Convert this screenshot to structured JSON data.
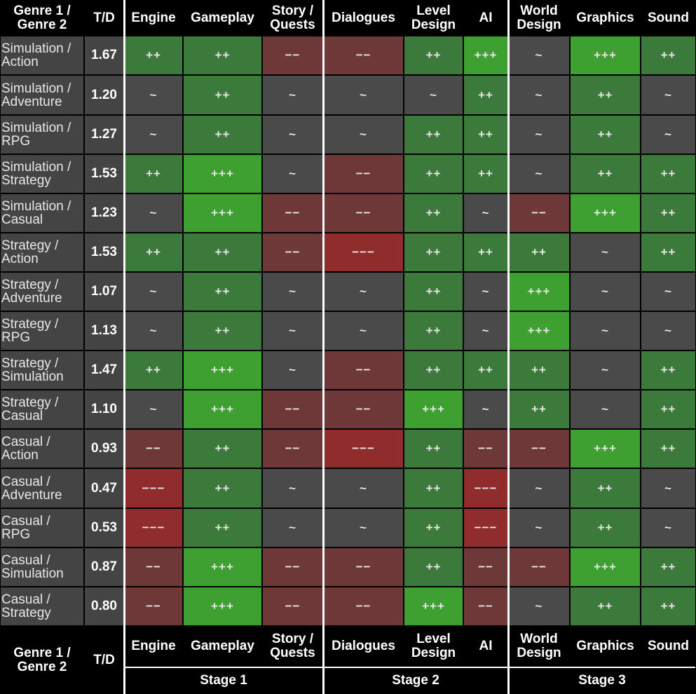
{
  "genre_header": "Genre 1 /\nGenre 2",
  "td_header": "T/D",
  "columns": [
    "Engine",
    "Gameplay",
    "Story /\nQuests",
    "Dialogues",
    "Level\nDesign",
    "AI",
    "World\nDesign",
    "Graphics",
    "Sound"
  ],
  "stages": [
    "Stage 1",
    "Stage 2",
    "Stage 3"
  ],
  "colors": {
    "neutral": "#4a4a4a",
    "pos2": "#3b7a3b",
    "pos3": "#3fa032",
    "neg2": "#6e3838",
    "neg3": "#902c2c",
    "cell_dark": "#444444"
  },
  "rows": [
    {
      "genre": "Simulation /\nAction",
      "td": "1.67",
      "ratings": [
        "++",
        "++",
        "−−",
        "−−",
        "++",
        "+++",
        "~",
        "+++",
        "++"
      ]
    },
    {
      "genre": "Simulation /\nAdventure",
      "td": "1.20",
      "ratings": [
        "~",
        "++",
        "~",
        "~",
        "~",
        "++",
        "~",
        "++",
        "~"
      ]
    },
    {
      "genre": "Simulation /\nRPG",
      "td": "1.27",
      "ratings": [
        "~",
        "++",
        "~",
        "~",
        "++",
        "++",
        "~",
        "++",
        "~"
      ]
    },
    {
      "genre": "Simulation /\nStrategy",
      "td": "1.53",
      "ratings": [
        "++",
        "+++",
        "~",
        "−−",
        "++",
        "++",
        "~",
        "++",
        "++"
      ]
    },
    {
      "genre": "Simulation /\nCasual",
      "td": "1.23",
      "ratings": [
        "~",
        "+++",
        "−−",
        "−−",
        "++",
        "~",
        "−−",
        "+++",
        "++"
      ]
    },
    {
      "genre": "Strategy /\nAction",
      "td": "1.53",
      "ratings": [
        "++",
        "++",
        "−−",
        "−−−",
        "++",
        "++",
        "++",
        "~",
        "++"
      ]
    },
    {
      "genre": "Strategy /\nAdventure",
      "td": "1.07",
      "ratings": [
        "~",
        "++",
        "~",
        "~",
        "++",
        "~",
        "+++",
        "~",
        "~"
      ]
    },
    {
      "genre": "Strategy /\nRPG",
      "td": "1.13",
      "ratings": [
        "~",
        "++",
        "~",
        "~",
        "++",
        "~",
        "+++",
        "~",
        "~"
      ]
    },
    {
      "genre": "Strategy /\nSimulation",
      "td": "1.47",
      "ratings": [
        "++",
        "+++",
        "~",
        "−−",
        "++",
        "++",
        "++",
        "~",
        "++"
      ]
    },
    {
      "genre": "Strategy /\nCasual",
      "td": "1.10",
      "ratings": [
        "~",
        "+++",
        "−−",
        "−−",
        "+++",
        "~",
        "++",
        "~",
        "++"
      ]
    },
    {
      "genre": "Casual /\nAction",
      "td": "0.93",
      "ratings": [
        "−−",
        "++",
        "−−",
        "−−−",
        "++",
        "−−",
        "−−",
        "+++",
        "++"
      ]
    },
    {
      "genre": "Casual /\nAdventure",
      "td": "0.47",
      "ratings": [
        "−−−",
        "++",
        "~",
        "~",
        "++",
        "−−−",
        "~",
        "++",
        "~"
      ]
    },
    {
      "genre": "Casual /\nRPG",
      "td": "0.53",
      "ratings": [
        "−−−",
        "++",
        "~",
        "~",
        "++",
        "−−−",
        "~",
        "++",
        "~"
      ]
    },
    {
      "genre": "Casual /\nSimulation",
      "td": "0.87",
      "ratings": [
        "−−",
        "+++",
        "−−",
        "−−",
        "++",
        "−−",
        "−−",
        "+++",
        "++"
      ]
    },
    {
      "genre": "Casual /\nStrategy",
      "td": "0.80",
      "ratings": [
        "−−",
        "+++",
        "−−",
        "−−",
        "+++",
        "−−",
        "~",
        "++",
        "++"
      ]
    }
  ]
}
